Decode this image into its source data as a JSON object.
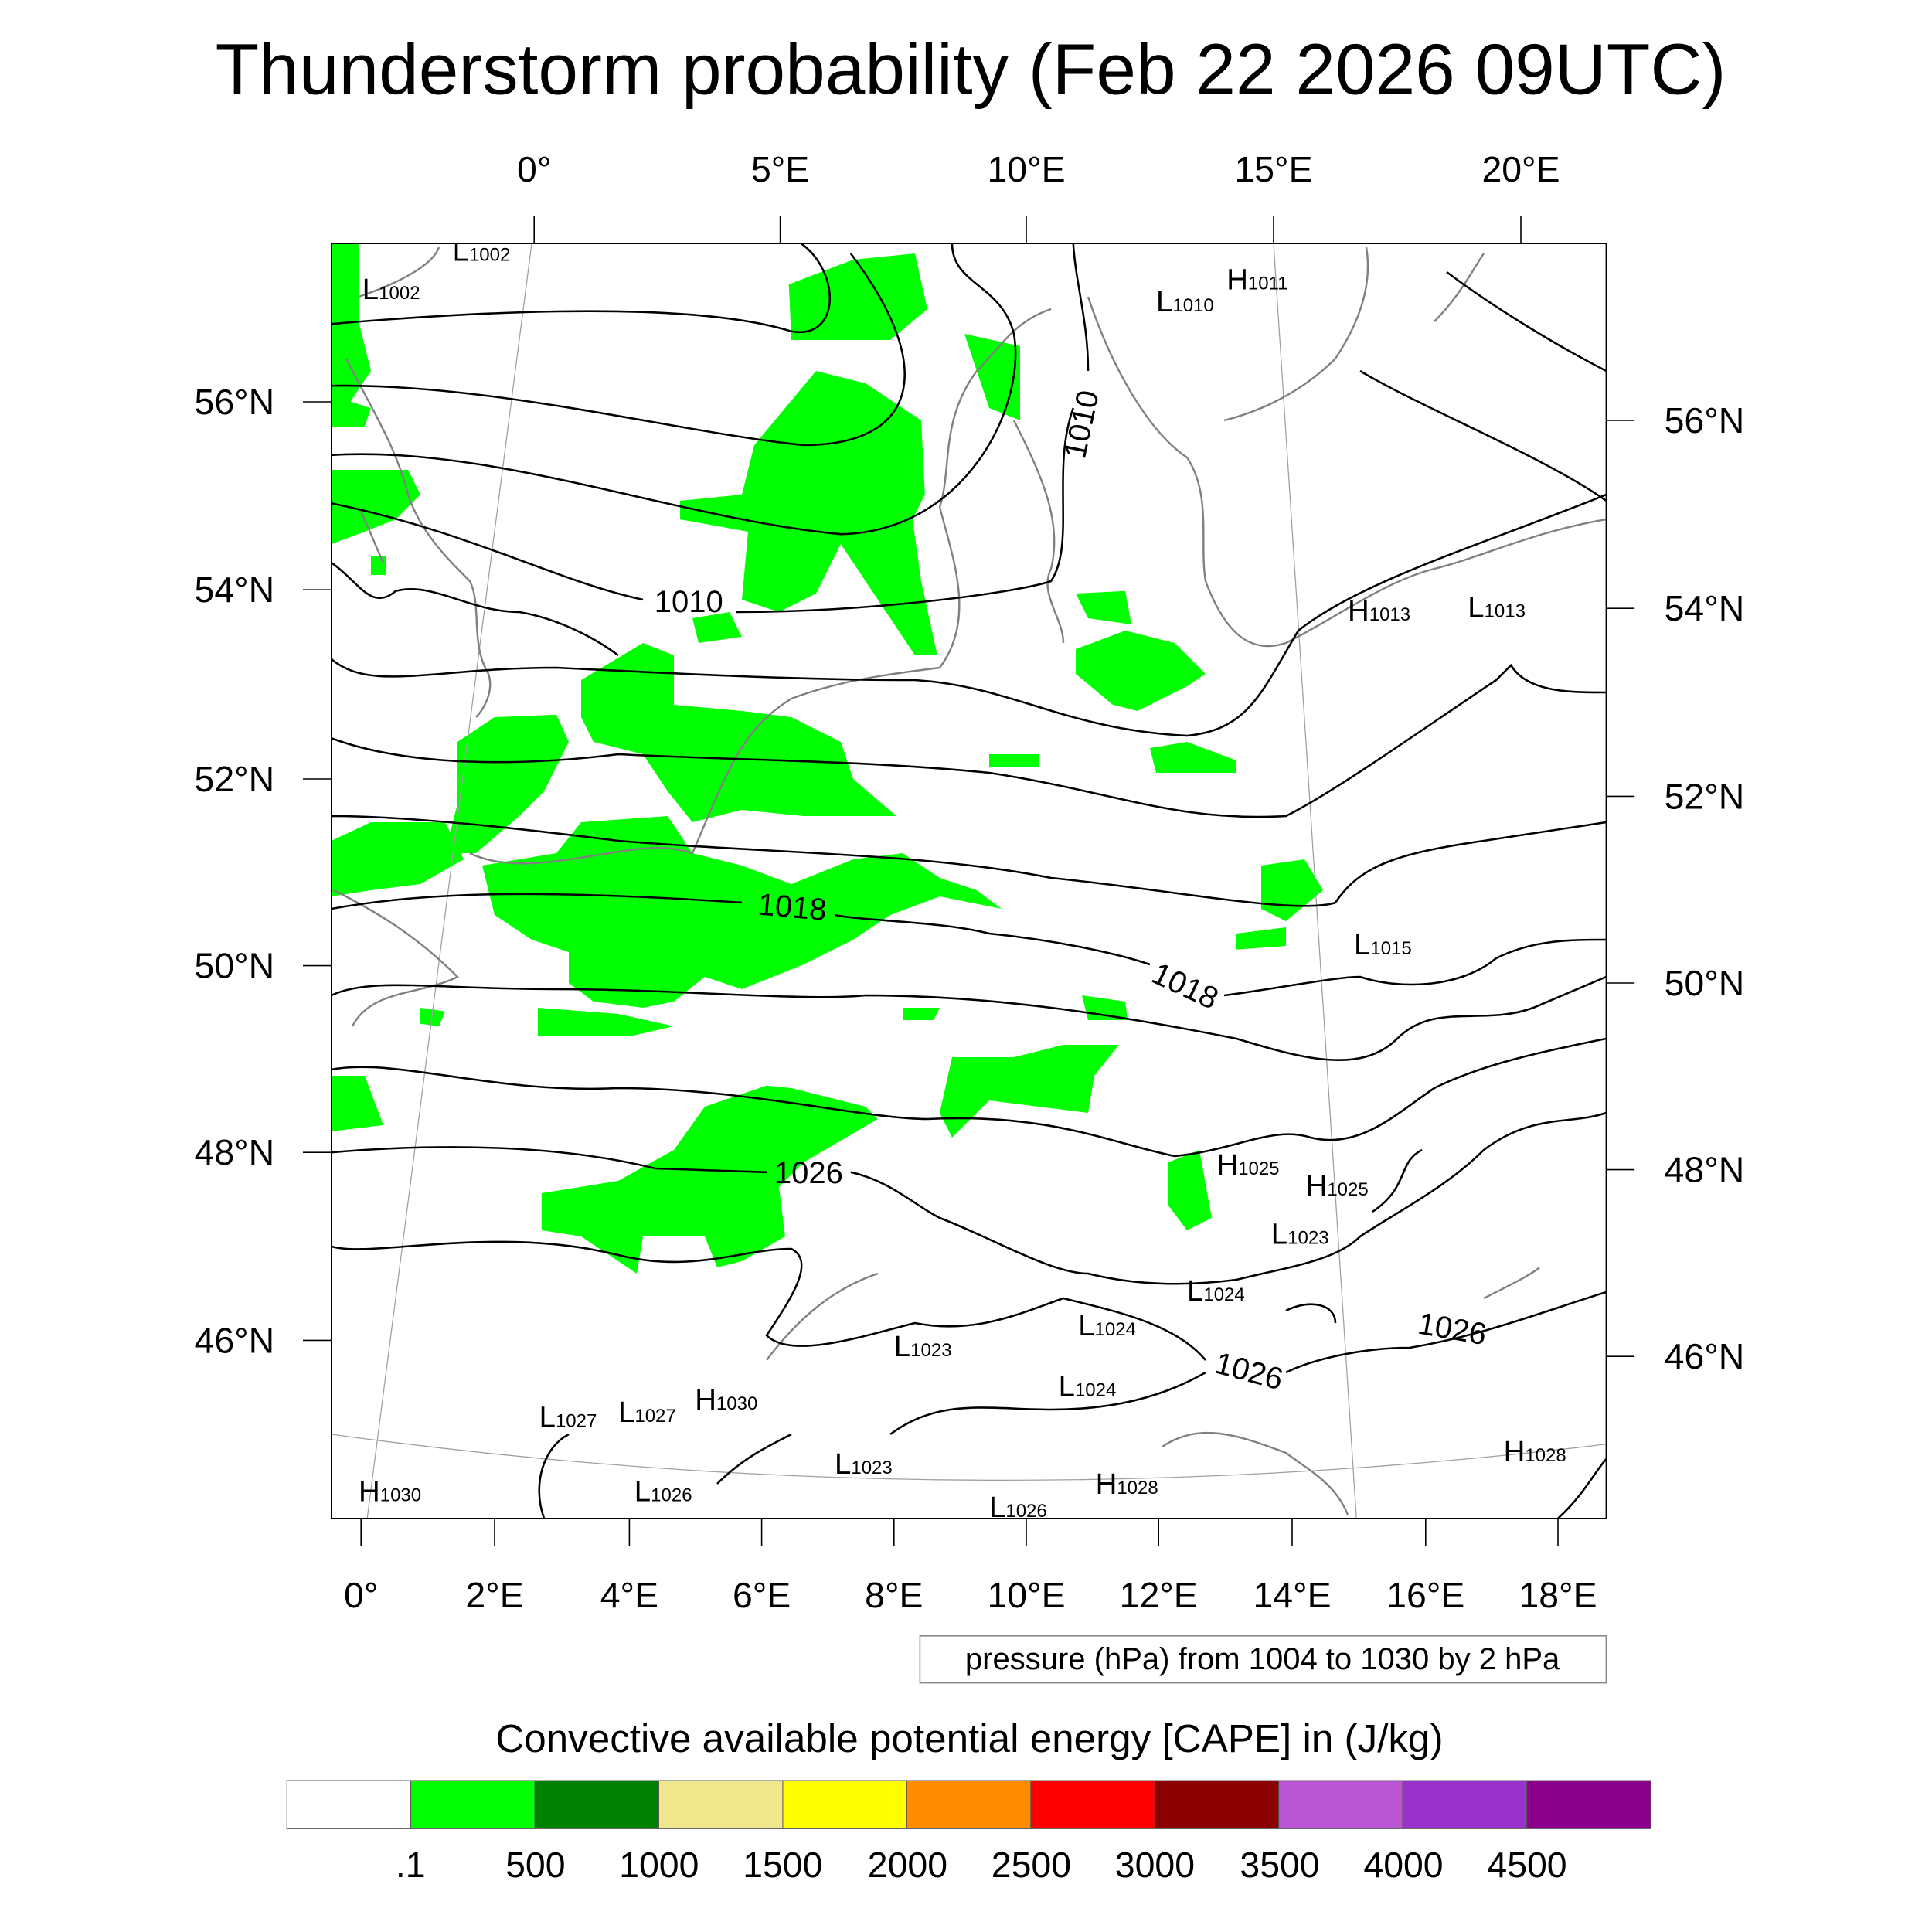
{
  "title": "Thunderstorm probability (Feb 22 2026 09UTC)",
  "axes": {
    "top_lon_labels": [
      "0°",
      "5°E",
      "10°E",
      "15°E",
      "20°E"
    ],
    "bottom_lon_labels": [
      "0°",
      "2°E",
      "4°E",
      "6°E",
      "8°E",
      "10°E",
      "12°E",
      "14°E",
      "16°E",
      "18°E"
    ],
    "left_lat_labels": [
      "56°N",
      "54°N",
      "52°N",
      "50°N",
      "48°N",
      "46°N"
    ],
    "right_lat_labels": [
      "56°N",
      "54°N",
      "52°N",
      "50°N",
      "48°N",
      "46°N"
    ]
  },
  "contour_labels": [
    "1010",
    "1010",
    "1018",
    "1018",
    "1026",
    "1026",
    "1026"
  ],
  "pressure_centers": [
    {
      "type": "L",
      "value": "1002"
    },
    {
      "type": "L",
      "value": "1002"
    },
    {
      "type": "L",
      "value": "1010"
    },
    {
      "type": "H",
      "value": "1011"
    },
    {
      "type": "H",
      "value": "1013"
    },
    {
      "type": "L",
      "value": "1013"
    },
    {
      "type": "L",
      "value": "1015"
    },
    {
      "type": "H",
      "value": "1025"
    },
    {
      "type": "H",
      "value": "1025"
    },
    {
      "type": "L",
      "value": "1023"
    },
    {
      "type": "L",
      "value": "1024"
    },
    {
      "type": "L",
      "value": "1024"
    },
    {
      "type": "L",
      "value": "1023"
    },
    {
      "type": "L",
      "value": "1024"
    },
    {
      "type": "L",
      "value": "1027"
    },
    {
      "type": "L",
      "value": "1027"
    },
    {
      "type": "H",
      "value": "1030"
    },
    {
      "type": "L",
      "value": "1023"
    },
    {
      "type": "L",
      "value": "1026"
    },
    {
      "type": "H",
      "value": "1030"
    },
    {
      "type": "H",
      "value": "1028"
    },
    {
      "type": "L",
      "value": "1026"
    },
    {
      "type": "H",
      "value": "1028"
    }
  ],
  "contour_info": "pressure (hPa) from 1004 to 1030 by 2 hPa",
  "colorbar": {
    "title": "Convective available potential energy [CAPE] in (J/kg)",
    "colors": [
      "#ffffff",
      "#00ff00",
      "#008000",
      "#f0e68c",
      "#ffff00",
      "#ff8c00",
      "#ff0000",
      "#8b0000",
      "#ba55d3",
      "#9932cc",
      "#8b008b"
    ],
    "labels": [
      ".1",
      "500",
      "1000",
      "1500",
      "2000",
      "2500",
      "3000",
      "3500",
      "4000",
      "4500"
    ]
  }
}
